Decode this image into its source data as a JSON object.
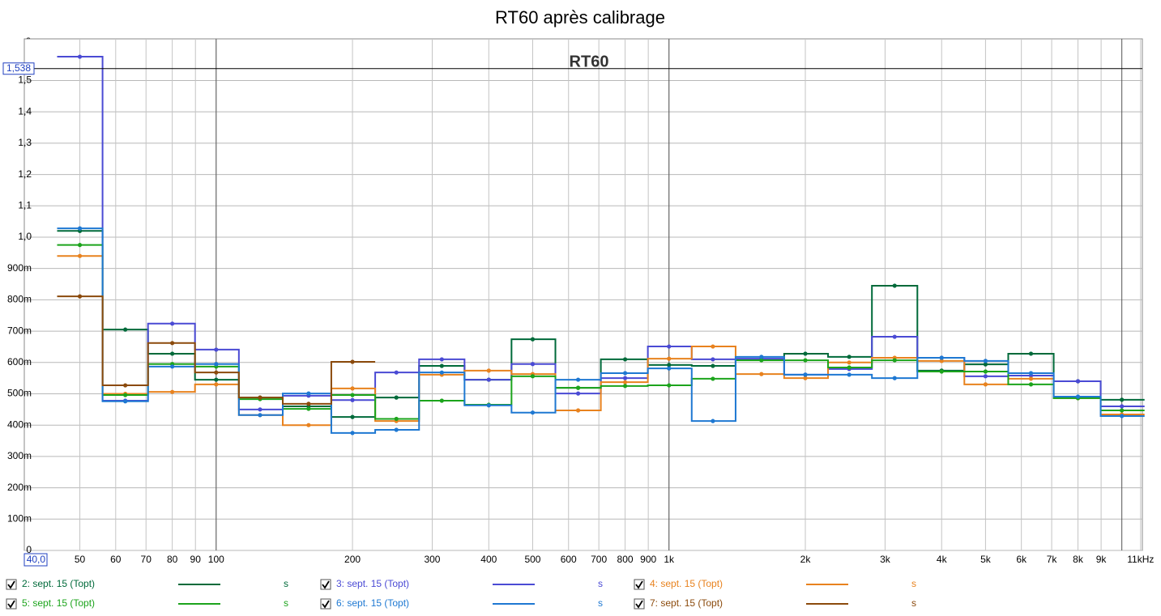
{
  "chart_data": {
    "type": "step",
    "title": "RT60 après calibrage",
    "annotation": "RT60",
    "y_unit": "s",
    "x_cursor": {
      "value": 40,
      "label": "40,0"
    },
    "y_cursor": {
      "value": 1.538,
      "label": "1,538"
    },
    "log_x": true,
    "xlim": [
      37.7,
      11100
    ],
    "ylim": [
      0,
      1.633
    ],
    "major_xgrid": [
      100,
      1000,
      10000
    ],
    "xticks": [
      50,
      60,
      70,
      80,
      90,
      100,
      200,
      300,
      400,
      500,
      600,
      700,
      800,
      900,
      {
        "value": 1000,
        "label": "1k"
      },
      {
        "value": 2000,
        "label": "2k"
      },
      {
        "value": 3000,
        "label": "3k"
      },
      {
        "value": 4000,
        "label": "4k"
      },
      {
        "value": 5000,
        "label": "5k"
      },
      {
        "value": 6000,
        "label": "6k"
      },
      {
        "value": 7000,
        "label": "7k"
      },
      {
        "value": 8000,
        "label": "8k"
      },
      {
        "value": 9000,
        "label": "9k"
      },
      {
        "value": 11000,
        "label": "11kHz"
      }
    ],
    "yticks": [
      0,
      {
        "value": 0.1,
        "label": "100m"
      },
      {
        "value": 0.2,
        "label": "200m"
      },
      {
        "value": 0.3,
        "label": "300m"
      },
      {
        "value": 0.4,
        "label": "400m"
      },
      {
        "value": 0.5,
        "label": "500m"
      },
      {
        "value": 0.6,
        "label": "600m"
      },
      {
        "value": 0.7,
        "label": "700m"
      },
      {
        "value": 0.8,
        "label": "800m"
      },
      {
        "value": 0.9,
        "label": "900m"
      },
      {
        "value": 1.0,
        "label": "1,0"
      },
      {
        "value": 1.1,
        "label": "1,1"
      },
      {
        "value": 1.2,
        "label": "1,2"
      },
      {
        "value": 1.3,
        "label": "1,3"
      },
      {
        "value": 1.4,
        "label": "1,4"
      },
      {
        "value": 1.5,
        "label": "1,5"
      }
    ],
    "x": [
      50,
      63,
      80,
      100,
      125,
      160,
      200,
      250,
      315,
      400,
      500,
      630,
      800,
      1000,
      1250,
      1600,
      2000,
      2500,
      3150,
      4000,
      5000,
      6300,
      8000,
      10000
    ],
    "series": [
      {
        "name": "2: sept. 15 (Topt)",
        "color": "#006a3a",
        "values": [
          1.02,
          0.705,
          0.628,
          0.545,
          0.488,
          0.46,
          0.426,
          0.488,
          0.589,
          0.545,
          0.674,
          0.519,
          0.61,
          0.592,
          0.589,
          0.61,
          0.628,
          0.618,
          0.845,
          0.574,
          0.594,
          0.628,
          0.54,
          0.481
        ]
      },
      {
        "name": "3: sept. 15 (Topt)",
        "color": "#4a4ad4",
        "values": [
          1.576,
          0.478,
          0.724,
          0.641,
          0.45,
          0.494,
          0.48,
          0.568,
          0.61,
          0.545,
          0.595,
          0.501,
          0.55,
          0.651,
          0.61,
          0.612,
          0.561,
          0.579,
          0.682,
          0.615,
          0.556,
          0.558,
          0.54,
          0.46
        ]
      },
      {
        "name": "4: sept. 15 (Topt)",
        "color": "#e8821e",
        "values": [
          0.94,
          0.5,
          0.506,
          0.53,
          0.432,
          0.4,
          0.517,
          0.413,
          0.561,
          0.574,
          0.563,
          0.447,
          0.537,
          0.612,
          0.651,
          0.563,
          0.55,
          0.6,
          0.615,
          0.605,
          0.53,
          0.548,
          0.486,
          0.434
        ]
      },
      {
        "name": "5: sept. 15 (Topt)",
        "color": "#1ca41c",
        "values": [
          0.975,
          0.496,
          0.595,
          0.587,
          0.483,
          0.452,
          0.496,
          0.42,
          0.478,
          0.465,
          0.556,
          0.519,
          0.525,
          0.527,
          0.548,
          0.607,
          0.607,
          0.584,
          0.607,
          0.571,
          0.571,
          0.53,
          0.486,
          0.447
        ]
      },
      {
        "name": "6: sept. 15 (Topt)",
        "color": "#1e78d2",
        "values": [
          1.028,
          0.476,
          0.587,
          0.595,
          0.432,
          0.501,
          0.375,
          0.385,
          0.568,
          0.463,
          0.44,
          0.545,
          0.566,
          0.581,
          0.413,
          0.618,
          0.561,
          0.561,
          0.55,
          0.615,
          0.605,
          0.566,
          0.491,
          0.429
        ]
      },
      {
        "name": "7: sept. 15 (Topt)",
        "color": "#8b4a0c",
        "values": [
          0.811,
          0.527,
          0.662,
          0.568,
          0.488,
          0.468,
          0.602,
          null,
          null,
          null,
          null,
          null,
          null,
          null,
          null,
          null,
          null,
          null,
          null,
          null,
          null,
          null,
          null,
          null
        ]
      }
    ]
  }
}
